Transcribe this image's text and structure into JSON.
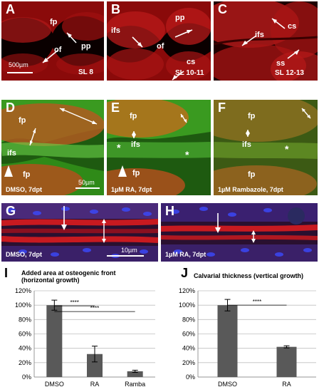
{
  "panels": {
    "A": {
      "letter": "A",
      "labels": [
        "fp",
        "pp",
        "of"
      ],
      "caption": "SL 8",
      "scale": "500µm"
    },
    "B": {
      "letter": "B",
      "labels": [
        "pp",
        "ifs",
        "of",
        "cs"
      ],
      "caption": "SL 10-11"
    },
    "C": {
      "letter": "C",
      "labels": [
        "cs",
        "ifs",
        "ss"
      ],
      "caption": "SL 12-13"
    },
    "D": {
      "letter": "D",
      "labels": [
        "fp",
        "ifs",
        "fp"
      ],
      "caption": "DMSO, 7dpt",
      "scale": "50µm"
    },
    "E": {
      "letter": "E",
      "labels": [
        "fp",
        "ifs",
        "fp",
        "*",
        "*"
      ],
      "caption": "1µM RA, 7dpt"
    },
    "F": {
      "letter": "F",
      "labels": [
        "fp",
        "ifs",
        "fp",
        "*"
      ],
      "caption": "1µM Rambazole, 7dpt"
    },
    "G": {
      "letter": "G",
      "caption": "DMSO, 7dpt",
      "scale": "10µm"
    },
    "H": {
      "letter": "H",
      "caption": "1µM RA, 7dpt"
    }
  },
  "chart_data": [
    {
      "letter": "I",
      "type": "bar",
      "title": "Added area at osteogenic front\n(horizontal growth)",
      "categories": [
        "DMSO",
        "RA",
        "Ramba"
      ],
      "values": [
        100,
        32,
        8
      ],
      "errors": [
        7,
        11,
        1.5
      ],
      "ylim": [
        0,
        120
      ],
      "yticks": [
        "0%",
        "20%",
        "40%",
        "60%",
        "80%",
        "100%",
        "120%"
      ],
      "significance": [
        "****",
        "****"
      ],
      "bar_color": "#595959"
    },
    {
      "letter": "J",
      "type": "bar",
      "title": "Calvarial thickness (vertical growth)",
      "categories": [
        "DMSO",
        "RA"
      ],
      "values": [
        100,
        42
      ],
      "errors": [
        8,
        1.5
      ],
      "ylim": [
        0,
        120
      ],
      "yticks": [
        "0%",
        "20%",
        "40%",
        "60%",
        "80%",
        "100%",
        "120%"
      ],
      "significance": [
        "****"
      ],
      "bar_color": "#595959"
    }
  ]
}
